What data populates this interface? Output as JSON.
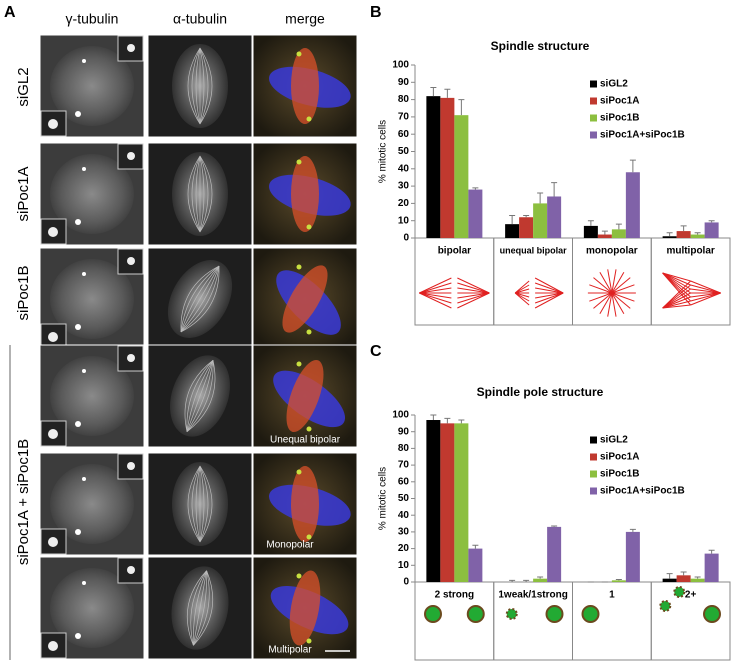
{
  "figure": {
    "panels": [
      "A",
      "B",
      "C"
    ],
    "columns": [
      "γ-tubulin",
      "α-tubulin",
      "merge"
    ],
    "rows": [
      "siGL2",
      "siPoc1A",
      "siPoc1B"
    ],
    "group_row": "siPoc1A + siPoc1B",
    "annotations": [
      "Unequal bipolar",
      "Monopolar",
      "Multipolar"
    ]
  },
  "chart_data": [
    {
      "type": "bar",
      "title": "Spindle structure",
      "y_label": "% mitotic cells",
      "categories": [
        "bipolar",
        "unequal bipolar",
        "monopolar",
        "multipolar"
      ],
      "series": [
        {
          "name": "siGL2",
          "color": "#000000",
          "values": [
            82,
            8,
            7,
            1
          ],
          "errors": [
            5,
            5,
            3,
            2
          ]
        },
        {
          "name": "siPoc1A",
          "color": "#c0392f",
          "values": [
            81,
            12,
            2,
            4
          ],
          "errors": [
            5,
            1,
            2,
            3
          ]
        },
        {
          "name": "siPoc1B",
          "color": "#8cbf3f",
          "values": [
            71,
            20,
            5,
            2
          ],
          "errors": [
            9,
            6,
            3,
            1
          ]
        },
        {
          "name": "siPoc1A+siPoc1B",
          "color": "#8062a8",
          "values": [
            28,
            24,
            38,
            9
          ],
          "errors": [
            1,
            8,
            7,
            1
          ]
        }
      ],
      "ylim": [
        0,
        100
      ],
      "yticks": [
        0,
        10,
        20,
        30,
        40,
        50,
        60,
        70,
        80,
        90,
        100
      ],
      "legend": "upper right"
    },
    {
      "type": "bar",
      "title": "Spindle pole structure",
      "y_label": "% mitotic cells",
      "categories": [
        "2 strong",
        "1weak/1strong",
        "1",
        "2+"
      ],
      "series": [
        {
          "name": "siGL2",
          "color": "#000000",
          "values": [
            97,
            0,
            0,
            2
          ],
          "errors": [
            3,
            1,
            0,
            3
          ]
        },
        {
          "name": "siPoc1A",
          "color": "#c0392f",
          "values": [
            95,
            0,
            0,
            4
          ],
          "errors": [
            3,
            1,
            0,
            2
          ]
        },
        {
          "name": "siPoc1B",
          "color": "#8cbf3f",
          "values": [
            95,
            2,
            1,
            2
          ],
          "errors": [
            2,
            1,
            0.5,
            1
          ]
        },
        {
          "name": "siPoc1A+siPoc1B",
          "color": "#8062a8",
          "values": [
            20,
            33,
            30,
            17
          ],
          "errors": [
            2,
            0.5,
            1.5,
            2
          ]
        }
      ],
      "ylim": [
        0,
        100
      ],
      "yticks": [
        0,
        10,
        20,
        30,
        40,
        50,
        60,
        70,
        80,
        90,
        100
      ],
      "legend": "upper right"
    }
  ]
}
